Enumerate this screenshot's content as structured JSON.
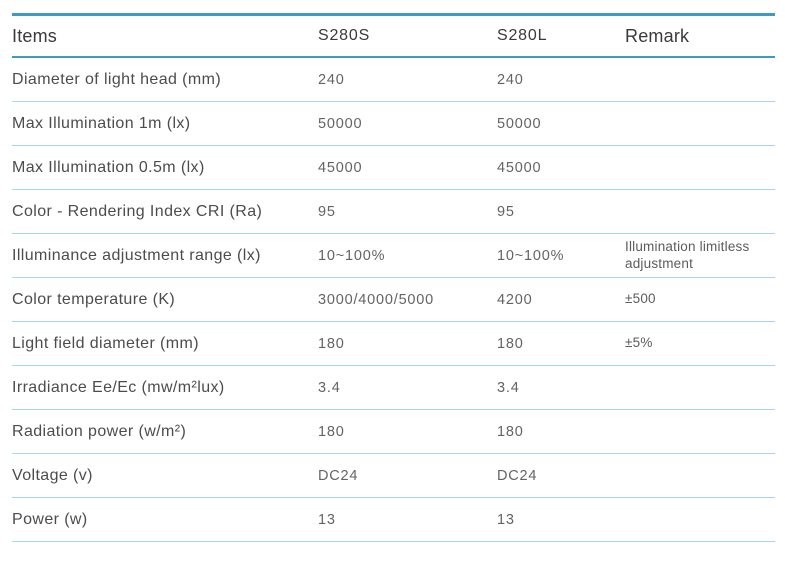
{
  "table": {
    "headers": {
      "items": "Items",
      "model_1": "S280S",
      "model_2": "S280L",
      "remark": "Remark"
    },
    "rows": [
      {
        "item": "Diameter of light head (mm)",
        "s280s": "240",
        "s280l": "240",
        "remark": ""
      },
      {
        "item": "Max Illumination 1m (lx)",
        "s280s": "50000",
        "s280l": "50000",
        "remark": ""
      },
      {
        "item": "Max Illumination 0.5m (lx)",
        "s280s": "45000",
        "s280l": "45000",
        "remark": ""
      },
      {
        "item": "Color - Rendering Index CRI (Ra)",
        "s280s": "95",
        "s280l": "95",
        "remark": ""
      },
      {
        "item": "Illuminance adjustment range (lx)",
        "s280s": "10~100%",
        "s280l": "10~100%",
        "remark": "Illumination limitless adjustment"
      },
      {
        "item": "Color temperature (K)",
        "s280s": "3000/4000/5000",
        "s280l": "4200",
        "remark": "±500"
      },
      {
        "item": "Light field diameter (mm)",
        "s280s": "180",
        "s280l": "180",
        "remark": "±5%"
      },
      {
        "item": "Irradiance Ee/Ec (mw/m²lux)",
        "s280s": "3.4",
        "s280l": "3.4",
        "remark": ""
      },
      {
        "item": "Radiation power (w/m²)",
        "s280s": "180",
        "s280l": "180",
        "remark": ""
      },
      {
        "item": "Voltage (v)",
        "s280s": "DC24",
        "s280l": "DC24",
        "remark": ""
      },
      {
        "item": "Power (w)",
        "s280s": "13",
        "s280l": "13",
        "remark": ""
      }
    ],
    "colors": {
      "accent_dark_line": "#3d9ac2",
      "accent_light_line": "#a6d7ea",
      "header_text": "#3a3a3c",
      "item_text": "#4c4c4e",
      "value_text": "#626466"
    }
  }
}
